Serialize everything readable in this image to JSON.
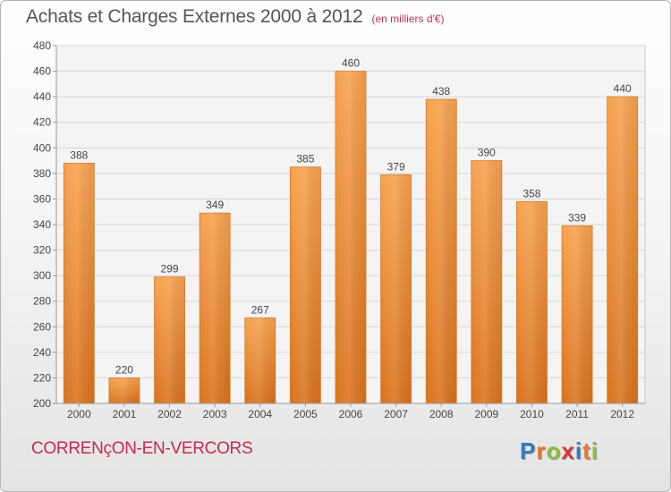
{
  "title": "Achats et Charges Externes 2000 à 2012",
  "unit": "(en milliers d'€)",
  "commune": "CORRENçON-EN-VERCORS",
  "logo": {
    "letters": [
      "P",
      "r",
      "o",
      "x",
      "i",
      "t",
      "i"
    ],
    "colors": [
      "#2d7fc1",
      "#e8772e",
      "#8cbf3f",
      "#d9343b",
      "#2d7fc1",
      "#e8772e",
      "#8cbf3f"
    ]
  },
  "chart_data": {
    "type": "bar",
    "categories": [
      "2000",
      "2001",
      "2002",
      "2003",
      "2004",
      "2005",
      "2006",
      "2007",
      "2008",
      "2009",
      "2010",
      "2011",
      "2012"
    ],
    "values": [
      388,
      220,
      299,
      349,
      267,
      385,
      460,
      379,
      438,
      390,
      358,
      339,
      440
    ],
    "ylim": [
      200,
      480
    ],
    "yticks": [
      200,
      220,
      240,
      260,
      280,
      300,
      320,
      340,
      360,
      380,
      400,
      420,
      440,
      460,
      480
    ],
    "data_labels": [
      "388",
      "220",
      "299",
      "349",
      "267",
      "385",
      "460",
      "379",
      "438",
      "390",
      "358",
      "339",
      "440"
    ],
    "grid": true,
    "bar_color": "#f0923a"
  }
}
